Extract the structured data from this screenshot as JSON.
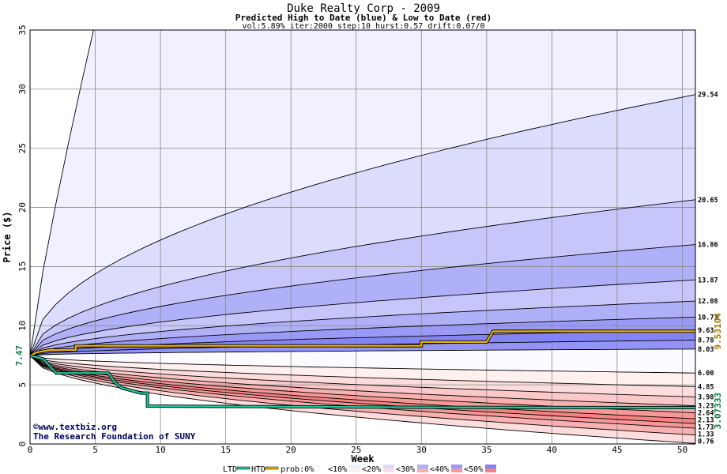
{
  "chart_data": {
    "type": "area",
    "title": "Duke Realty Corp - 2009",
    "subtitle": "Predicted High to Date (blue) &  Low to Date (red)",
    "params": "vol:5.89% iter:2000 step:10 hurst:0.57 drift:0.07/0",
    "xlabel": "Week",
    "ylabel": "Price ($)",
    "xlim": [
      0,
      51
    ],
    "ylim": [
      0,
      35
    ],
    "xticks": [
      0,
      5,
      10,
      15,
      20,
      25,
      30,
      35,
      40,
      45,
      50
    ],
    "yticks": [
      0,
      5,
      10,
      15,
      20,
      25,
      30,
      35
    ],
    "start_price": 7.47,
    "start_label": "7.47",
    "high_quantiles_end": [
      8.03,
      8.78,
      9.63,
      10.73,
      12.08,
      13.87,
      16.86,
      20.65,
      29.54
    ],
    "high_labels": [
      "8.03",
      "8.78",
      "9.63",
      "10.73",
      "12.08",
      "13.87",
      "16.86",
      "20.65",
      "29.54"
    ],
    "low_quantiles_end": [
      6.0,
      4.85,
      3.98,
      3.23,
      2.64,
      2.13,
      1.73,
      1.33,
      0.76
    ],
    "low_labels": [
      "6.00",
      "4.85",
      "3.98",
      "3.23",
      "2.64",
      "2.13",
      "1.73",
      "1.33",
      "0.76"
    ],
    "htd_series": {
      "name": "HTD",
      "color": "#f0b400",
      "x": [
        0,
        0.5,
        1.5,
        3.5,
        3.5,
        30,
        30,
        35,
        35.5,
        51
      ],
      "y": [
        7.47,
        7.75,
        7.95,
        7.95,
        8.3,
        8.3,
        8.62,
        8.62,
        9.53,
        9.53
      ],
      "end_value": "9.53104"
    },
    "ltd_series": {
      "name": "LTD",
      "color": "#20c8a0",
      "x": [
        0,
        1,
        1.5,
        2,
        6,
        6.5,
        7,
        8,
        8.5,
        9,
        9,
        10,
        30,
        51
      ],
      "y": [
        7.47,
        7.2,
        6.6,
        6.0,
        6.0,
        5.2,
        4.75,
        4.45,
        4.3,
        4.3,
        3.2,
        3.2,
        3.1,
        3.07
      ],
      "end_value": "3.07333"
    },
    "legend": {
      "ltd": "LTD",
      "htd": "HTD",
      "prob": "prob:0%",
      "items": [
        "<10%",
        "<20%",
        "<30%",
        "<40%",
        "<50%"
      ]
    },
    "watermark": [
      "©www.textbiz.org",
      "The Research Foundation of SUNY"
    ],
    "colors": {
      "blue_bands": [
        "#f0f0ff",
        "#dcdcfc",
        "#c6c6fa",
        "#b0b0f8",
        "#9a9af6",
        "#8484f4",
        "#9494f6"
      ],
      "red_bands": [
        "#fff0f0",
        "#fcdcdc",
        "#fac8c8",
        "#f8b0b0",
        "#f69898",
        "#f48282",
        "#f49090"
      ],
      "grid": "#888888",
      "htd": "#f0b400",
      "ltd": "#20c8a0",
      "start_label": "#008040",
      "htd_label": "#a07800",
      "ltd_label": "#008040"
    }
  }
}
